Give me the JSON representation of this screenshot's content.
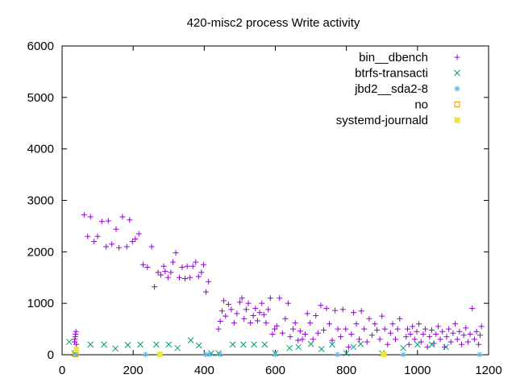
{
  "chart_data": {
    "type": "scatter",
    "title": "420-misc2 process Write activity",
    "xlabel": "",
    "ylabel": "",
    "xlim": [
      0,
      1200
    ],
    "ylim": [
      0,
      6000
    ],
    "xticks": [
      0,
      200,
      400,
      600,
      800,
      1000,
      1200
    ],
    "yticks": [
      0,
      1000,
      2000,
      3000,
      4000,
      5000,
      6000
    ],
    "grid": false,
    "legend_position": "top-right",
    "series": [
      {
        "name": "bin__dbench",
        "marker": "plus",
        "color": "#9400d3",
        "points": [
          [
            35,
            250
          ],
          [
            36,
            300
          ],
          [
            37,
            350
          ],
          [
            38,
            400
          ],
          [
            39,
            450
          ],
          [
            40,
            200
          ],
          [
            62,
            2720
          ],
          [
            72,
            2300
          ],
          [
            80,
            2680
          ],
          [
            90,
            2200
          ],
          [
            100,
            2300
          ],
          [
            112,
            2590
          ],
          [
            124,
            2100
          ],
          [
            130,
            2600
          ],
          [
            140,
            2150
          ],
          [
            152,
            2440
          ],
          [
            160,
            2080
          ],
          [
            170,
            2680
          ],
          [
            182,
            2100
          ],
          [
            190,
            2620
          ],
          [
            198,
            2200
          ],
          [
            206,
            2250
          ],
          [
            216,
            2350
          ],
          [
            228,
            1750
          ],
          [
            240,
            1700
          ],
          [
            252,
            2100
          ],
          [
            260,
            1320
          ],
          [
            270,
            1600
          ],
          [
            278,
            1550
          ],
          [
            286,
            1720
          ],
          [
            290,
            1620
          ],
          [
            298,
            1500
          ],
          [
            306,
            1600
          ],
          [
            312,
            1800
          ],
          [
            320,
            1980
          ],
          [
            330,
            1500
          ],
          [
            338,
            1700
          ],
          [
            346,
            1480
          ],
          [
            352,
            1720
          ],
          [
            360,
            1500
          ],
          [
            368,
            1720
          ],
          [
            376,
            1800
          ],
          [
            384,
            1520
          ],
          [
            392,
            1600
          ],
          [
            398,
            1750
          ],
          [
            405,
            1220
          ],
          [
            412,
            1420
          ],
          [
            440,
            500
          ],
          [
            445,
            650
          ],
          [
            450,
            850
          ],
          [
            455,
            1050
          ],
          [
            460,
            750
          ],
          [
            468,
            980
          ],
          [
            476,
            880
          ],
          [
            484,
            620
          ],
          [
            492,
            800
          ],
          [
            500,
            1020
          ],
          [
            506,
            1100
          ],
          [
            512,
            700
          ],
          [
            518,
            880
          ],
          [
            524,
            1000
          ],
          [
            530,
            620
          ],
          [
            538,
            760
          ],
          [
            544,
            900
          ],
          [
            550,
            660
          ],
          [
            556,
            820
          ],
          [
            562,
            1000
          ],
          [
            568,
            780
          ],
          [
            574,
            620
          ],
          [
            580,
            880
          ],
          [
            586,
            1100
          ],
          [
            592,
            400
          ],
          [
            598,
            500
          ],
          [
            604,
            560
          ],
          [
            612,
            1100
          ],
          [
            620,
            420
          ],
          [
            628,
            700
          ],
          [
            636,
            1000
          ],
          [
            642,
            350
          ],
          [
            650,
            500
          ],
          [
            656,
            620
          ],
          [
            664,
            280
          ],
          [
            670,
            460
          ],
          [
            676,
            300
          ],
          [
            684,
            400
          ],
          [
            690,
            800
          ],
          [
            698,
            620
          ],
          [
            706,
            300
          ],
          [
            714,
            760
          ],
          [
            720,
            420
          ],
          [
            728,
            960
          ],
          [
            736,
            480
          ],
          [
            744,
            900
          ],
          [
            752,
            600
          ],
          [
            760,
            280
          ],
          [
            768,
            860
          ],
          [
            776,
            500
          ],
          [
            784,
            350
          ],
          [
            790,
            880
          ],
          [
            798,
            500
          ],
          [
            806,
            150
          ],
          [
            814,
            400
          ],
          [
            820,
            820
          ],
          [
            828,
            600
          ],
          [
            836,
            300
          ],
          [
            842,
            850
          ],
          [
            850,
            500
          ],
          [
            858,
            250
          ],
          [
            864,
            700
          ],
          [
            872,
            380
          ],
          [
            880,
            600
          ],
          [
            886,
            480
          ],
          [
            894,
            300
          ],
          [
            900,
            750
          ],
          [
            908,
            500
          ],
          [
            916,
            200
          ],
          [
            924,
            420
          ],
          [
            930,
            600
          ],
          [
            938,
            300
          ],
          [
            944,
            500
          ],
          [
            950,
            700
          ],
          [
            968,
            350
          ],
          [
            972,
            500
          ],
          [
            976,
            200
          ],
          [
            980,
            400
          ],
          [
            986,
            550
          ],
          [
            992,
            300
          ],
          [
            998,
            450
          ],
          [
            1004,
            600
          ],
          [
            1010,
            250
          ],
          [
            1016,
            400
          ],
          [
            1022,
            500
          ],
          [
            1028,
            150
          ],
          [
            1034,
            350
          ],
          [
            1040,
            480
          ],
          [
            1046,
            220
          ],
          [
            1052,
            400
          ],
          [
            1058,
            550
          ],
          [
            1064,
            300
          ],
          [
            1070,
            450
          ],
          [
            1076,
            150
          ],
          [
            1082,
            350
          ],
          [
            1088,
            500
          ],
          [
            1094,
            250
          ],
          [
            1100,
            420
          ],
          [
            1106,
            600
          ],
          [
            1112,
            300
          ],
          [
            1118,
            450
          ],
          [
            1124,
            200
          ],
          [
            1130,
            380
          ],
          [
            1136,
            520
          ],
          [
            1142,
            250
          ],
          [
            1148,
            400
          ],
          [
            1154,
            900
          ],
          [
            1160,
            300
          ],
          [
            1166,
            450
          ],
          [
            1172,
            200
          ],
          [
            1176,
            380
          ],
          [
            1180,
            550
          ]
        ]
      },
      {
        "name": "btrfs-transacti",
        "marker": "cross",
        "color": "#009e73",
        "points": [
          [
            20,
            250
          ],
          [
            35,
            30
          ],
          [
            80,
            200
          ],
          [
            118,
            200
          ],
          [
            150,
            120
          ],
          [
            185,
            190
          ],
          [
            220,
            200
          ],
          [
            265,
            200
          ],
          [
            300,
            200
          ],
          [
            325,
            130
          ],
          [
            362,
            280
          ],
          [
            385,
            180
          ],
          [
            420,
            30
          ],
          [
            440,
            30
          ],
          [
            480,
            200
          ],
          [
            510,
            200
          ],
          [
            540,
            200
          ],
          [
            570,
            200
          ],
          [
            600,
            30
          ],
          [
            640,
            130
          ],
          [
            665,
            150
          ],
          [
            700,
            210
          ],
          [
            730,
            110
          ],
          [
            760,
            200
          ],
          [
            800,
            30
          ],
          [
            820,
            150
          ],
          [
            840,
            210
          ],
          [
            900,
            30
          ],
          [
            960,
            130
          ],
          [
            1000,
            200
          ],
          [
            1040,
            200
          ],
          [
            1080,
            150
          ]
        ]
      },
      {
        "name": "jbd2__sda2-8",
        "marker": "star",
        "color": "#56b4e9",
        "points": [
          [
            35,
            10
          ],
          [
            40,
            5
          ],
          [
            235,
            5
          ],
          [
            405,
            5
          ],
          [
            415,
            10
          ],
          [
            445,
            8
          ],
          [
            600,
            5
          ],
          [
            775,
            5
          ],
          [
            960,
            5
          ],
          [
            1175,
            5
          ]
        ]
      },
      {
        "name": "no",
        "marker": "square-open",
        "color": "#e69f00",
        "points": [
          [
            38,
            5
          ]
        ]
      },
      {
        "name": "systemd-journald",
        "marker": "square-filled",
        "color": "#f0e442",
        "points": [
          [
            40,
            100
          ],
          [
            275,
            5
          ],
          [
            905,
            5
          ]
        ]
      }
    ]
  }
}
